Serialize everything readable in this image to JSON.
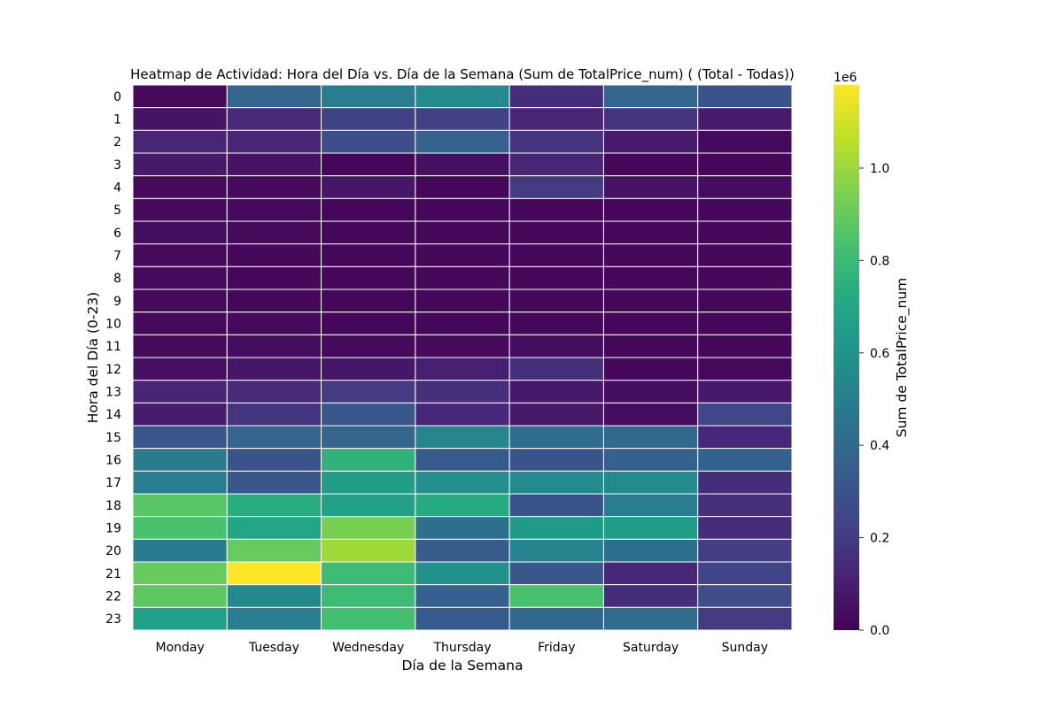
{
  "chart_data": {
    "type": "heatmap",
    "title": "Heatmap de Actividad: Hora del Día vs. Día de la Semana (Sum de TotalPrice_num) ( (Total - Todas))",
    "xlabel": "Día de la Semana",
    "ylabel": "Hora del Día (0-23)",
    "x": [
      "Monday",
      "Tuesday",
      "Wednesday",
      "Thursday",
      "Friday",
      "Saturday",
      "Sunday"
    ],
    "y": [
      "0",
      "1",
      "2",
      "3",
      "4",
      "5",
      "6",
      "7",
      "8",
      "9",
      "10",
      "11",
      "12",
      "13",
      "14",
      "15",
      "16",
      "17",
      "18",
      "19",
      "20",
      "21",
      "22",
      "23"
    ],
    "values": [
      [
        30000,
        380000,
        500000,
        560000,
        150000,
        380000,
        300000
      ],
      [
        60000,
        140000,
        230000,
        230000,
        120000,
        180000,
        90000
      ],
      [
        120000,
        120000,
        280000,
        370000,
        180000,
        90000,
        30000
      ],
      [
        80000,
        60000,
        20000,
        50000,
        120000,
        20000,
        20000
      ],
      [
        30000,
        30000,
        70000,
        20000,
        200000,
        60000,
        40000
      ],
      [
        30000,
        30000,
        20000,
        20000,
        20000,
        20000,
        20000
      ],
      [
        40000,
        30000,
        20000,
        20000,
        20000,
        20000,
        20000
      ],
      [
        30000,
        20000,
        20000,
        20000,
        20000,
        20000,
        20000
      ],
      [
        30000,
        20000,
        20000,
        20000,
        20000,
        20000,
        20000
      ],
      [
        30000,
        20000,
        20000,
        20000,
        20000,
        20000,
        20000
      ],
      [
        30000,
        30000,
        20000,
        20000,
        20000,
        20000,
        20000
      ],
      [
        30000,
        40000,
        30000,
        30000,
        40000,
        20000,
        20000
      ],
      [
        50000,
        70000,
        70000,
        100000,
        160000,
        20000,
        30000
      ],
      [
        120000,
        140000,
        200000,
        160000,
        80000,
        40000,
        80000
      ],
      [
        90000,
        180000,
        320000,
        130000,
        80000,
        40000,
        250000
      ],
      [
        320000,
        380000,
        380000,
        530000,
        420000,
        400000,
        130000
      ],
      [
        490000,
        300000,
        760000,
        330000,
        300000,
        360000,
        360000
      ],
      [
        500000,
        320000,
        650000,
        580000,
        560000,
        560000,
        150000
      ],
      [
        870000,
        730000,
        670000,
        720000,
        300000,
        500000,
        160000
      ],
      [
        840000,
        700000,
        940000,
        430000,
        640000,
        650000,
        150000
      ],
      [
        490000,
        900000,
        1010000,
        340000,
        520000,
        430000,
        210000
      ],
      [
        900000,
        1180000,
        800000,
        590000,
        320000,
        130000,
        240000
      ],
      [
        880000,
        550000,
        800000,
        360000,
        840000,
        150000,
        280000
      ],
      [
        660000,
        500000,
        820000,
        330000,
        390000,
        410000,
        200000
      ]
    ],
    "vmin": 0,
    "vmax": 1180000,
    "colormap": "viridis",
    "colorbar": {
      "label": "Sum de TotalPrice_num",
      "multiplier": "1e6",
      "ticks": [
        0.0,
        0.2,
        0.4,
        0.6,
        0.8,
        1.0
      ],
      "tick_labels": [
        "0.0",
        "0.2",
        "0.4",
        "0.6",
        "0.8",
        "1.0"
      ]
    },
    "grid": false
  }
}
